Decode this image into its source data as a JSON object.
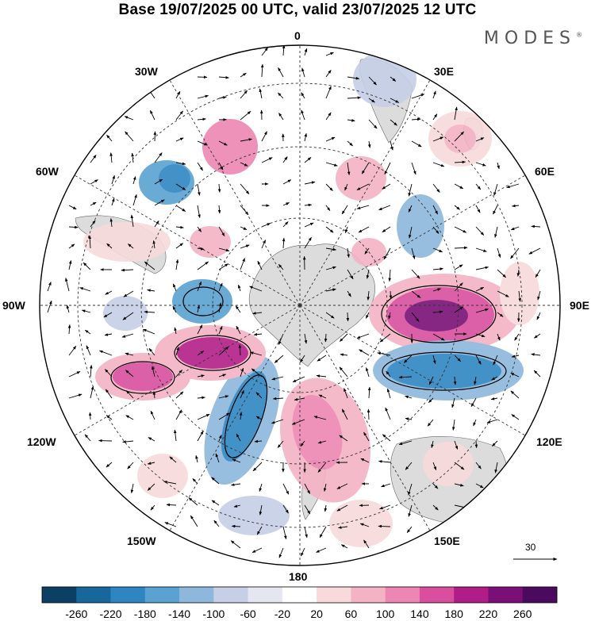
{
  "header": {
    "title": "Base 19/07/2025 00 UTC, valid 23/07/2025 12 UTC",
    "brand": "MODES",
    "brand_mark": "®"
  },
  "map": {
    "projection": "south-polar-stereographic",
    "longitude_labels": {
      "lon_0": "0",
      "lon_30e": "30E",
      "lon_60e": "60E",
      "lon_90e": "90E",
      "lon_120e": "120E",
      "lon_150e": "150E",
      "lon_180": "180",
      "lon_150w": "150W",
      "lon_120w": "120W",
      "lon_90w": "90W",
      "lon_60w": "60W",
      "lon_30w": "30W"
    },
    "reference_vector": {
      "value": "30"
    }
  },
  "colorbar": {
    "labels": [
      "-260",
      "-220",
      "-180",
      "-140",
      "-100",
      "-60",
      "-20",
      "20",
      "60",
      "100",
      "140",
      "180",
      "220",
      "260"
    ],
    "colors": [
      "#0b3f63",
      "#17679c",
      "#2e86c1",
      "#5aa2d2",
      "#8db7dc",
      "#c6cfe6",
      "#e6e6f1",
      "#ffffff",
      "#f8dadc",
      "#f4b3c4",
      "#ec86b2",
      "#d94e9e",
      "#b11d87",
      "#7a0f77",
      "#4a0a5d"
    ]
  },
  "colors": {
    "land": "#dcdcdc",
    "grid": "#333333"
  }
}
